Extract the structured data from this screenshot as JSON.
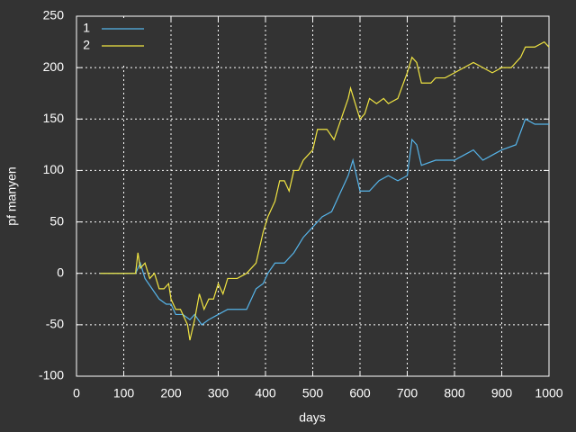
{
  "chart_data": {
    "type": "line",
    "xlabel": "days",
    "ylabel": "pf manyen",
    "xlim": [
      0,
      1000
    ],
    "xticks": [
      0,
      100,
      200,
      300,
      400,
      500,
      600,
      700,
      800,
      900,
      1000
    ],
    "ylim": [
      -100,
      250
    ],
    "yticks": [
      -100,
      -50,
      0,
      50,
      100,
      150,
      200,
      250
    ],
    "grid": true,
    "legend": "top-left",
    "series": [
      {
        "name": "1",
        "color": "#56b4e9",
        "x": [
          50,
          125,
          135,
          145,
          160,
          175,
          190,
          200,
          210,
          225,
          240,
          250,
          265,
          280,
          300,
          320,
          340,
          360,
          380,
          395,
          405,
          420,
          440,
          460,
          480,
          500,
          520,
          540,
          560,
          575,
          585,
          600,
          620,
          640,
          660,
          680,
          700,
          710,
          720,
          730,
          760,
          800,
          820,
          840,
          860,
          880,
          900,
          930,
          950,
          970,
          1000
        ],
        "values": [
          0,
          0,
          10,
          -5,
          -15,
          -25,
          -30,
          -30,
          -40,
          -40,
          -45,
          -40,
          -50,
          -45,
          -40,
          -35,
          -35,
          -35,
          -15,
          -10,
          0,
          10,
          10,
          20,
          35,
          45,
          55,
          60,
          80,
          95,
          110,
          80,
          80,
          90,
          95,
          90,
          95,
          130,
          125,
          105,
          110,
          110,
          115,
          120,
          110,
          115,
          120,
          125,
          150,
          145,
          145
        ]
      },
      {
        "name": "2",
        "color": "#f0e442",
        "x": [
          50,
          125,
          130,
          135,
          145,
          155,
          165,
          175,
          185,
          195,
          200,
          210,
          220,
          235,
          240,
          250,
          260,
          270,
          280,
          290,
          300,
          310,
          320,
          340,
          360,
          380,
          395,
          405,
          420,
          430,
          440,
          450,
          460,
          470,
          480,
          500,
          510,
          530,
          545,
          560,
          575,
          580,
          590,
          600,
          610,
          620,
          635,
          650,
          660,
          680,
          700,
          710,
          720,
          730,
          750,
          760,
          780,
          800,
          820,
          840,
          860,
          880,
          900,
          920,
          940,
          950,
          970,
          990,
          1000
        ],
        "values": [
          0,
          0,
          20,
          5,
          10,
          -5,
          0,
          -15,
          -15,
          -10,
          -25,
          -35,
          -35,
          -50,
          -65,
          -45,
          -20,
          -35,
          -25,
          -25,
          -10,
          -20,
          -5,
          -5,
          0,
          10,
          40,
          55,
          70,
          90,
          90,
          80,
          100,
          100,
          110,
          120,
          140,
          140,
          130,
          150,
          170,
          180,
          165,
          150,
          155,
          170,
          165,
          170,
          165,
          170,
          195,
          210,
          205,
          185,
          185,
          190,
          190,
          195,
          200,
          205,
          200,
          195,
          200,
          200,
          210,
          220,
          220,
          225,
          220
        ]
      }
    ]
  }
}
